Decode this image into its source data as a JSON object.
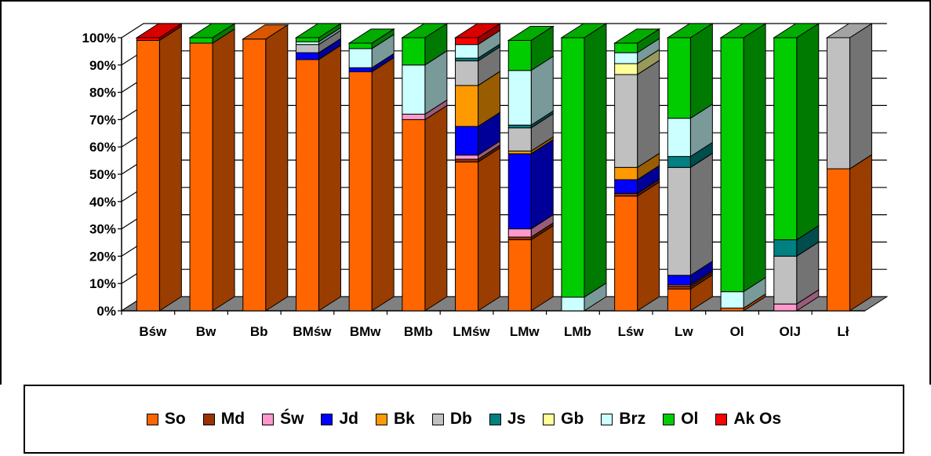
{
  "chart_data": {
    "type": "bar",
    "stacked": true,
    "percent": true,
    "three_d": true,
    "categories": [
      "Bśw",
      "Bw",
      "Bb",
      "BMśw",
      "BMw",
      "BMb",
      "LMśw",
      "LMw",
      "LMb",
      "Lśw",
      "Lw",
      "Ol",
      "OlJ",
      "Lł"
    ],
    "yticks": [
      "0%",
      "10%",
      "20%",
      "30%",
      "40%",
      "50%",
      "60%",
      "70%",
      "80%",
      "90%",
      "100%"
    ],
    "ylim": [
      0,
      100
    ],
    "series": [
      {
        "name": "So",
        "color": "#FF6600",
        "values": [
          99,
          98,
          99.5,
          92,
          87.5,
          70,
          54.5,
          26,
          0,
          42,
          8,
          1,
          0,
          52
        ]
      },
      {
        "name": "Md",
        "color": "#993300",
        "values": [
          0,
          0,
          0,
          0,
          0,
          0,
          1,
          1,
          0,
          1,
          1,
          0,
          0,
          0
        ]
      },
      {
        "name": "Św",
        "color": "#FF99CC",
        "values": [
          0,
          0,
          0,
          0,
          0,
          2,
          1.5,
          3,
          0,
          0,
          0.5,
          0,
          2.5,
          0
        ]
      },
      {
        "name": "Jd",
        "color": "#0000FF",
        "values": [
          0,
          0,
          0,
          2.5,
          1.5,
          0,
          10.5,
          27.5,
          0,
          5,
          3.5,
          0,
          0,
          0
        ]
      },
      {
        "name": "Bk",
        "color": "#FF9900",
        "values": [
          0,
          0,
          0,
          0,
          0,
          0,
          15,
          1,
          0,
          4.5,
          0,
          0,
          0,
          0
        ]
      },
      {
        "name": "Db",
        "color": "#C0C0C0",
        "values": [
          0,
          0,
          0,
          3,
          0,
          0,
          9,
          8.5,
          0,
          34,
          39.5,
          0,
          17.5,
          48
        ]
      },
      {
        "name": "Js",
        "color": "#008080",
        "values": [
          0,
          0,
          0,
          0,
          0,
          0,
          1,
          1,
          0,
          0,
          4,
          0,
          6,
          0
        ]
      },
      {
        "name": "Gb",
        "color": "#FFFF99",
        "values": [
          0,
          0,
          0,
          0,
          0,
          0,
          0,
          0,
          0,
          4,
          0,
          0,
          0,
          0
        ]
      },
      {
        "name": "Brz",
        "color": "#CCFFFF",
        "values": [
          0,
          0,
          0,
          1,
          7,
          18,
          5,
          20,
          5,
          4,
          14,
          6,
          0,
          0
        ]
      },
      {
        "name": "Ol",
        "color": "#00CC00",
        "values": [
          0,
          2,
          0,
          1.5,
          2,
          10,
          0,
          11,
          95,
          3.5,
          29.5,
          93,
          74,
          0
        ]
      },
      {
        "name": "Ak Os",
        "color": "#FF0000",
        "values": [
          1,
          0,
          0,
          0,
          0,
          0,
          2.5,
          0,
          0,
          0,
          0,
          0,
          0,
          0
        ]
      }
    ]
  }
}
